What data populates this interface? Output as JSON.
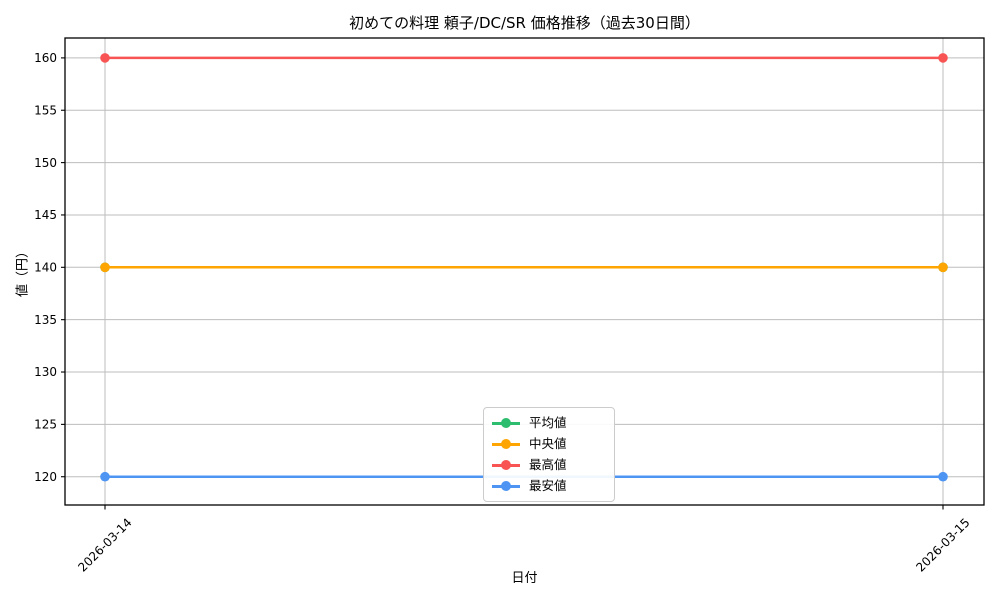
{
  "chart_data": {
    "type": "line",
    "title": "初めての料理 頼子/DC/SR 価格推移（過去30日間）",
    "xlabel": "日付",
    "ylabel": "値（円）",
    "categories": [
      "2026-03-14",
      "2026-03-15"
    ],
    "yticks": [
      120,
      125,
      130,
      135,
      140,
      145,
      150,
      155,
      160
    ],
    "ylim": [
      117.3,
      161.9
    ],
    "grid": true,
    "legend_position": "lower center",
    "series": [
      {
        "name": "平均値",
        "color": "#2dbd6e",
        "values": [
          140,
          140
        ]
      },
      {
        "name": "中央値",
        "color": "#ffa502",
        "values": [
          140,
          140
        ]
      },
      {
        "name": "最高値",
        "color": "#f85454",
        "values": [
          160,
          160
        ]
      },
      {
        "name": "最安値",
        "color": "#4d94f3",
        "values": [
          120,
          120
        ]
      }
    ],
    "colors": {
      "grid": "#bdbdbd",
      "spine": "#000000",
      "tick": "#000000",
      "legend_border": "#cccccc",
      "background": "#ffffff"
    }
  }
}
